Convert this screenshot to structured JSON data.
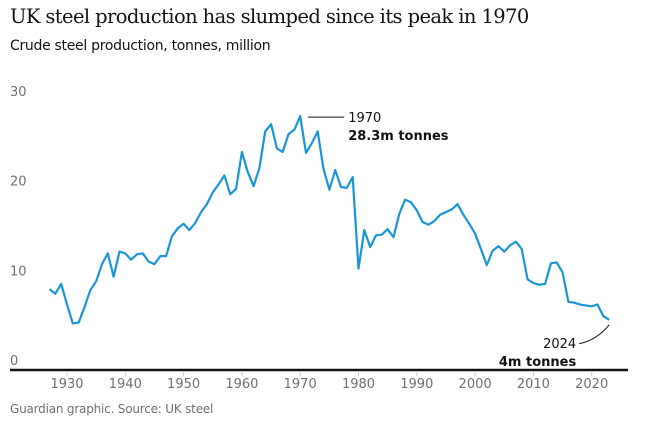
{
  "header": {
    "title": "UK steel production has slumped since its peak in 1970",
    "subtitle": "Crude steel production, tonnes, million"
  },
  "footer": {
    "source": "Guardian graphic. Source: UK steel"
  },
  "colors": {
    "line": "#1a95d6",
    "axis": "#121212",
    "tick_text": "#707070"
  },
  "chart_data": {
    "type": "line",
    "title": "UK steel production has slumped since its peak in 1970",
    "subtitle": "Crude steel production, tonnes, million",
    "xlabel": "",
    "ylabel": "Crude steel production, tonnes, million",
    "xlim": [
      1921,
      2027
    ],
    "ylim": [
      0,
      30
    ],
    "grid": false,
    "x_ticks": [
      1930,
      1940,
      1950,
      1960,
      1970,
      1980,
      1990,
      2000,
      2010,
      2020
    ],
    "y_ticks": [
      0,
      10,
      20,
      30
    ],
    "series": [
      {
        "name": "Crude steel production",
        "x": [
          1927,
          1928,
          1929,
          1930,
          1931,
          1932,
          1933,
          1934,
          1935,
          1936,
          1937,
          1938,
          1939,
          1940,
          1941,
          1942,
          1943,
          1944,
          1945,
          1946,
          1947,
          1948,
          1949,
          1950,
          1951,
          1952,
          1953,
          1954,
          1955,
          1956,
          1957,
          1958,
          1959,
          1960,
          1961,
          1962,
          1963,
          1964,
          1965,
          1966,
          1967,
          1968,
          1969,
          1970,
          1971,
          1972,
          1973,
          1974,
          1975,
          1976,
          1977,
          1978,
          1979,
          1980,
          1981,
          1982,
          1983,
          1984,
          1985,
          1986,
          1987,
          1988,
          1989,
          1990,
          1991,
          1992,
          1993,
          1994,
          1995,
          1996,
          1997,
          1998,
          1999,
          2000,
          2001,
          2002,
          2003,
          2004,
          2005,
          2006,
          2007,
          2008,
          2009,
          2010,
          2011,
          2012,
          2013,
          2014,
          2015,
          2016,
          2017,
          2018,
          2019,
          2020,
          2021,
          2022,
          2023
        ],
        "values": [
          9.0,
          8.5,
          9.6,
          7.3,
          5.2,
          5.3,
          7.0,
          8.9,
          9.9,
          11.8,
          13.0,
          10.4,
          13.2,
          13.0,
          12.3,
          12.9,
          13.0,
          12.1,
          11.8,
          12.7,
          12.7,
          14.9,
          15.8,
          16.3,
          15.6,
          16.4,
          17.6,
          18.5,
          19.8,
          20.7,
          21.7,
          19.6,
          20.2,
          24.3,
          22.1,
          20.5,
          22.5,
          26.6,
          27.4,
          24.7,
          24.3,
          26.3,
          26.8,
          28.3,
          24.2,
          25.3,
          26.6,
          22.4,
          20.1,
          22.3,
          20.4,
          20.3,
          21.5,
          11.3,
          15.6,
          13.7,
          15.0,
          15.1,
          15.7,
          14.8,
          17.4,
          19.0,
          18.7,
          17.8,
          16.5,
          16.2,
          16.6,
          17.3,
          17.6,
          17.9,
          18.5,
          17.3,
          16.3,
          15.2,
          13.5,
          11.7,
          13.3,
          13.8,
          13.2,
          13.9,
          14.3,
          13.5,
          10.1,
          9.7,
          9.5,
          9.6,
          11.9,
          12.0,
          10.9,
          7.6,
          7.5,
          7.3,
          7.2,
          7.1,
          7.3,
          6.0,
          5.6
        ]
      }
    ],
    "annotations": [
      {
        "year_label": "1970",
        "value_label": "28.3m tonnes",
        "x": 1970,
        "y": 28.3
      },
      {
        "year_label": "2024",
        "value_label": "4m tonnes",
        "x": 2023,
        "y": 5.6
      }
    ]
  }
}
